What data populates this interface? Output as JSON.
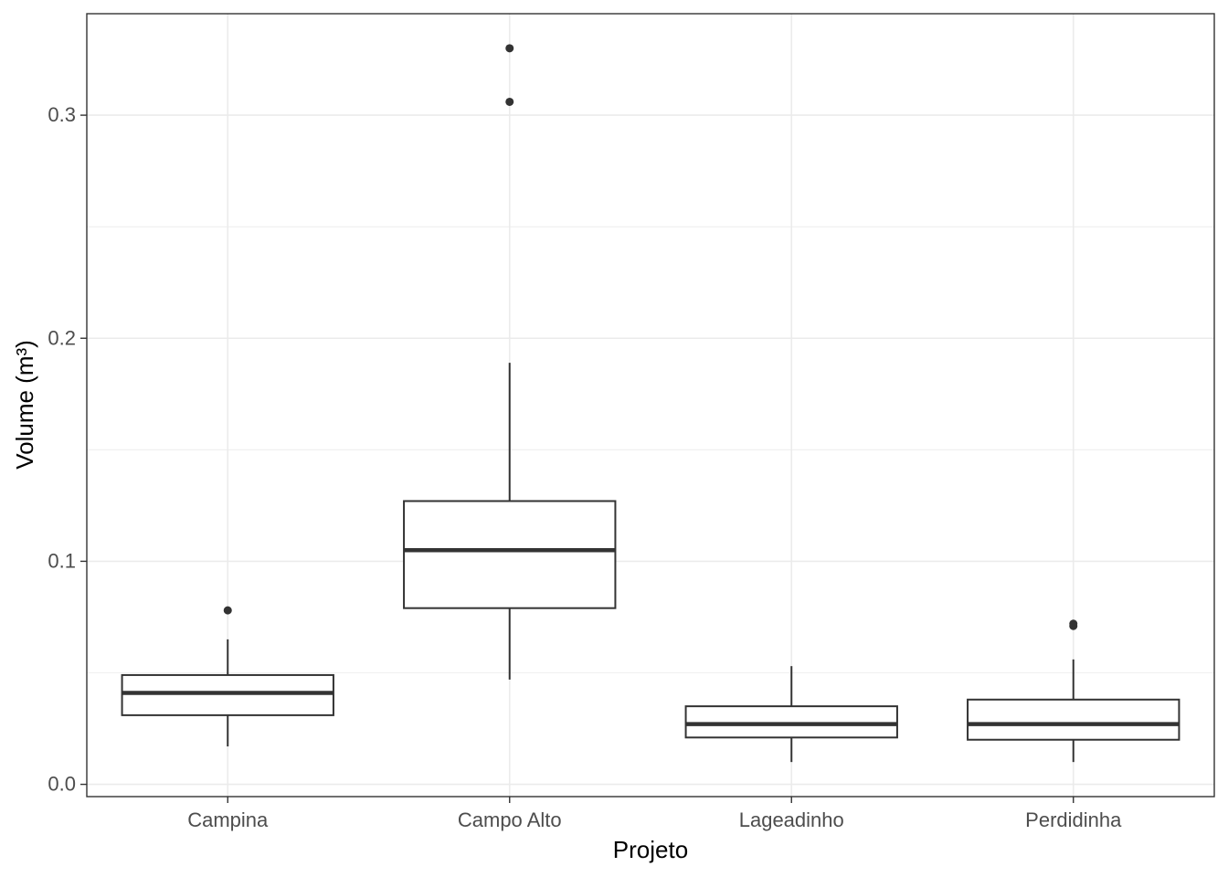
{
  "chart_data": {
    "type": "box",
    "xlabel": "Projeto",
    "ylabel": "Volume (m³)",
    "ylim": [
      -0.0055,
      0.3455
    ],
    "y_ticks": [
      0.0,
      0.1,
      0.2,
      0.3
    ],
    "y_tick_labels": [
      "0.0",
      "0.1",
      "0.2",
      "0.3"
    ],
    "grid": true,
    "categories": [
      "Campina",
      "Campo Alto",
      "Lageadinho",
      "Perdidinha"
    ],
    "boxes": [
      {
        "category": "Campina",
        "whisker_low": 0.017,
        "q1": 0.031,
        "median": 0.041,
        "q3": 0.049,
        "whisker_high": 0.065,
        "outliers": [
          0.078
        ]
      },
      {
        "category": "Campo Alto",
        "whisker_low": 0.047,
        "q1": 0.079,
        "median": 0.105,
        "q3": 0.127,
        "whisker_high": 0.189,
        "outliers": [
          0.306,
          0.33
        ]
      },
      {
        "category": "Lageadinho",
        "whisker_low": 0.01,
        "q1": 0.021,
        "median": 0.027,
        "q3": 0.035,
        "whisker_high": 0.053,
        "outliers": []
      },
      {
        "category": "Perdidinha",
        "whisker_low": 0.01,
        "q1": 0.02,
        "median": 0.027,
        "q3": 0.038,
        "whisker_high": 0.056,
        "outliers": [
          0.071,
          0.072
        ]
      }
    ],
    "colors": {
      "box_stroke": "#333333",
      "box_fill": "#ffffff",
      "grid": "#ebebeb",
      "panel_border": "#333333"
    }
  }
}
